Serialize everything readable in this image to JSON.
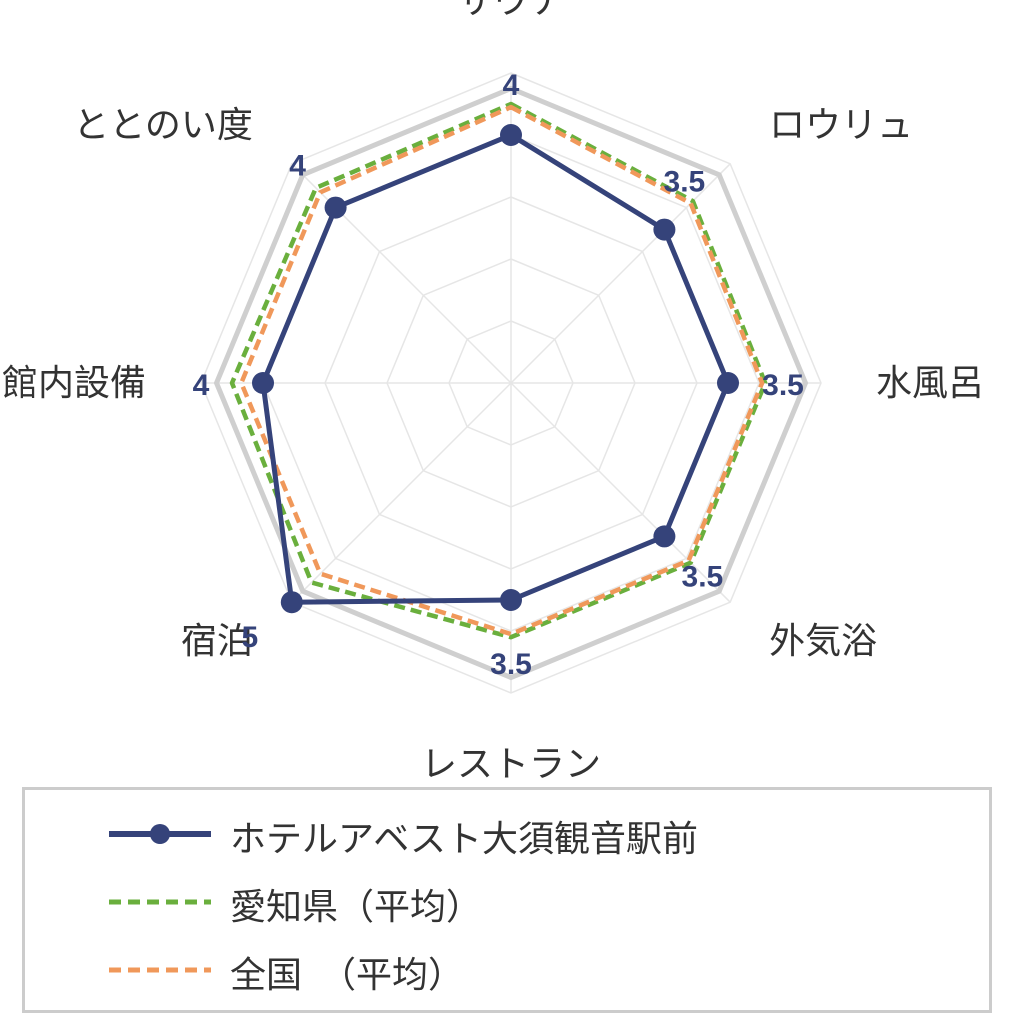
{
  "chart_data": {
    "type": "radar",
    "axes": [
      "サウナ",
      "ロウリュ",
      "水風呂",
      "外気浴",
      "レストラン",
      "宿泊",
      "館内設備",
      "ととのい度"
    ],
    "rmax": 5,
    "grid_levels": [
      1,
      2,
      3,
      4,
      5
    ],
    "series": [
      {
        "name": "ホテルアベスト大須観音駅前",
        "values": [
          4,
          3.5,
          3.5,
          3.5,
          3.5,
          5,
          4,
          4
        ],
        "labels": [
          "4",
          "3.5",
          "3.5",
          "3.5",
          "3.5",
          "5",
          "4",
          "4"
        ],
        "color": "#35437a",
        "style": "solid-markers"
      },
      {
        "name": "愛知県（平均）",
        "values": [
          4.5,
          4.15,
          4.1,
          4.1,
          4.1,
          4.55,
          4.5,
          4.45
        ],
        "color": "#6aaf3d",
        "style": "dashed"
      },
      {
        "name": "全国　（平均）",
        "values": [
          4.45,
          4.1,
          4.05,
          4.05,
          4.05,
          4.35,
          4.35,
          4.35
        ],
        "color": "#f0985a",
        "style": "dashed"
      }
    ],
    "reference_ring": 4.75,
    "grid": true,
    "legend": "bottom"
  },
  "colors": {
    "grid": "#e6e6e6",
    "reference": "#cfcfcf",
    "label": "#333333"
  }
}
